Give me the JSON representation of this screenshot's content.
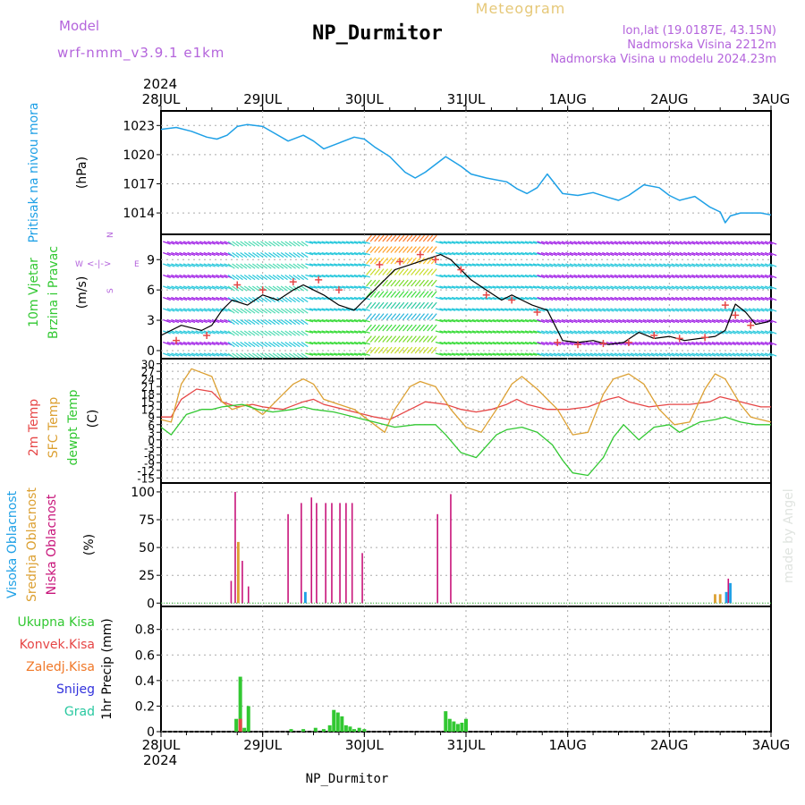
{
  "header": {
    "model_label": "Model",
    "model_value": "wrf-nmm_v3.9.1  e1km",
    "title": "NP_Durmitor",
    "subtitle": "Meteogram",
    "location": "lon,lat (19.0187E, 43.15N)",
    "elevation": "Nadmorska Visina 2212m",
    "model_elevation": "Nadmorska Visina u modelu 2024.23m",
    "footer": "NP_Durmitor",
    "credit": "made by Angel"
  },
  "colors": {
    "pressure": "#1ea0e6",
    "t2m": "#e64646",
    "sfc": "#dca032",
    "dewpt": "#32c832",
    "cloud_high": "#1ea0e6",
    "cloud_mid": "#dca032",
    "cloud_low": "#c8147a",
    "precip_total": "#32c832",
    "precip_conv": "#e64646",
    "precip_frz": "#f07828",
    "snow": "#3232dc",
    "hail": "#28c8a0",
    "wind_legend": "#b464dc"
  },
  "time_axis": {
    "year": "2024",
    "ticks": [
      "28JUL",
      "29JUL",
      "30JUL",
      "31JUL",
      "1AUG",
      "2AUG",
      "3AUG"
    ]
  },
  "chart_data": [
    {
      "type": "line",
      "panel": "pressure",
      "ylabel": [
        "Pritisak na nivou mora",
        "(hPa)"
      ],
      "yticks": [
        1014,
        1017,
        1020,
        1023
      ],
      "ylim": [
        1011.8,
        1024.5
      ],
      "x_days": [
        0,
        0.15,
        0.3,
        0.45,
        0.55,
        0.65,
        0.75,
        0.85,
        1.0,
        1.1,
        1.25,
        1.4,
        1.5,
        1.6,
        1.75,
        1.9,
        2.0,
        2.1,
        2.25,
        2.4,
        2.5,
        2.6,
        2.8,
        2.95,
        3.05,
        3.2,
        3.4,
        3.5,
        3.6,
        3.7,
        3.8,
        3.95,
        4.1,
        4.25,
        4.4,
        4.5,
        4.6,
        4.75,
        4.9,
        5.0,
        5.1,
        5.25,
        5.4,
        5.5,
        5.55,
        5.6,
        5.7,
        5.8,
        5.9,
        6.0
      ],
      "values": [
        1022.6,
        1022.8,
        1022.4,
        1021.8,
        1021.6,
        1022.0,
        1022.9,
        1023.1,
        1022.9,
        1022.3,
        1021.4,
        1022.0,
        1021.4,
        1020.6,
        1021.2,
        1021.8,
        1021.6,
        1020.8,
        1019.8,
        1018.2,
        1017.6,
        1018.2,
        1019.8,
        1018.8,
        1018.0,
        1017.6,
        1017.2,
        1016.5,
        1016.0,
        1016.6,
        1018.0,
        1016.0,
        1015.8,
        1016.1,
        1015.6,
        1015.3,
        1015.8,
        1016.9,
        1016.6,
        1015.8,
        1015.3,
        1015.7,
        1014.6,
        1014.1,
        1013.0,
        1013.7,
        1014.0,
        1014.0,
        1014.0,
        1013.8
      ],
      "grid": true
    },
    {
      "type": "line",
      "panel": "wind",
      "ylabel": [
        "10m Vjetar",
        "Brzina i Pravac",
        "(m/s)"
      ],
      "yticks": [
        0,
        3,
        6,
        9
      ],
      "ylim": [
        -0.8,
        11.5
      ],
      "direction_legend": [
        "N",
        "W",
        "E",
        "S"
      ],
      "x_days": [
        0,
        0.2,
        0.4,
        0.5,
        0.6,
        0.7,
        0.85,
        1.0,
        1.15,
        1.3,
        1.4,
        1.5,
        1.6,
        1.75,
        1.9,
        2.0,
        2.1,
        2.2,
        2.3,
        2.45,
        2.6,
        2.75,
        2.85,
        2.95,
        3.05,
        3.2,
        3.35,
        3.45,
        3.55,
        3.65,
        3.8,
        3.95,
        4.1,
        4.25,
        4.4,
        4.55,
        4.7,
        4.85,
        5.0,
        5.15,
        5.3,
        5.45,
        5.55,
        5.65,
        5.75,
        5.85,
        5.95,
        6.0
      ],
      "values": [
        1.5,
        2.5,
        2.0,
        2.5,
        4.0,
        5.0,
        4.5,
        5.5,
        5.0,
        6.0,
        6.5,
        6.0,
        5.5,
        4.5,
        4.0,
        5.0,
        6.0,
        7.0,
        8.0,
        8.5,
        9.0,
        9.5,
        9.0,
        8.0,
        7.0,
        6.0,
        5.0,
        5.5,
        5.0,
        4.5,
        4.0,
        1.0,
        0.8,
        1.0,
        0.6,
        0.8,
        1.8,
        1.2,
        1.4,
        1.0,
        1.2,
        1.4,
        2.0,
        4.6,
        3.8,
        2.6,
        2.8,
        3.0
      ],
      "gust_x_days": [
        0.15,
        0.45,
        0.75,
        1.0,
        1.3,
        1.55,
        1.75,
        2.15,
        2.35,
        2.55,
        2.7,
        2.95,
        3.2,
        3.45,
        3.7,
        3.9,
        4.1,
        4.35,
        4.6,
        4.85,
        5.1,
        5.35,
        5.55,
        5.65,
        5.8
      ],
      "gust_values": [
        1.0,
        1.5,
        6.5,
        6.0,
        6.8,
        7.0,
        6.0,
        8.5,
        8.8,
        9.5,
        9.0,
        8.0,
        5.5,
        5.0,
        3.8,
        0.8,
        0.6,
        0.7,
        0.8,
        1.5,
        1.2,
        1.3,
        4.5,
        3.5,
        2.5
      ],
      "grid": true
    },
    {
      "type": "line",
      "panel": "temperature",
      "ylabel": [
        "2m Temp",
        "SFC Temp",
        "dewpt Temp",
        "(C)"
      ],
      "yticks": [
        -15,
        -12,
        -9,
        -6,
        -3,
        0,
        3,
        6,
        9,
        12,
        15,
        18,
        21,
        24,
        27,
        30
      ],
      "ylim": [
        -17,
        32
      ],
      "series": [
        {
          "name": "2m Temp",
          "x_days": [
            0,
            0.1,
            0.2,
            0.35,
            0.5,
            0.6,
            0.75,
            0.9,
            1.0,
            1.2,
            1.4,
            1.5,
            1.6,
            1.8,
            2.0,
            2.1,
            2.25,
            2.4,
            2.5,
            2.6,
            2.8,
            2.95,
            3.1,
            3.25,
            3.4,
            3.5,
            3.6,
            3.8,
            4.0,
            4.2,
            4.4,
            4.5,
            4.6,
            4.8,
            5.0,
            5.2,
            5.4,
            5.5,
            5.6,
            5.8,
            5.9,
            6.0
          ],
          "values": [
            9,
            9,
            16,
            20,
            19,
            15,
            13,
            14,
            13,
            12,
            15,
            16,
            14,
            12,
            10,
            9,
            8,
            11,
            13,
            15,
            14,
            12,
            11,
            12,
            14,
            16,
            14,
            12,
            12,
            13,
            16,
            17,
            15,
            13,
            14,
            14,
            15,
            17,
            16,
            14,
            13,
            13
          ]
        },
        {
          "name": "SFC Temp",
          "x_days": [
            0,
            0.1,
            0.2,
            0.3,
            0.5,
            0.6,
            0.7,
            0.85,
            1.0,
            1.2,
            1.3,
            1.4,
            1.5,
            1.6,
            1.75,
            1.9,
            2.0,
            2.1,
            2.2,
            2.3,
            2.45,
            2.55,
            2.7,
            2.85,
            3.0,
            3.15,
            3.3,
            3.45,
            3.55,
            3.7,
            3.9,
            4.05,
            4.2,
            4.35,
            4.45,
            4.6,
            4.75,
            4.9,
            5.05,
            5.2,
            5.35,
            5.45,
            5.55,
            5.7,
            5.8,
            5.9,
            6.0
          ],
          "values": [
            8,
            7,
            22,
            28,
            25,
            15,
            12,
            14,
            10,
            18,
            22,
            24,
            22,
            16,
            14,
            12,
            9,
            6,
            3,
            12,
            21,
            23,
            21,
            12,
            5,
            3,
            12,
            22,
            25,
            20,
            12,
            2,
            3,
            18,
            24,
            26,
            22,
            12,
            6,
            7,
            20,
            26,
            24,
            14,
            9,
            8,
            7
          ]
        },
        {
          "name": "dewpt Temp",
          "x_days": [
            0,
            0.1,
            0.25,
            0.4,
            0.5,
            0.6,
            0.8,
            0.95,
            1.1,
            1.3,
            1.4,
            1.5,
            1.7,
            1.9,
            2.0,
            2.1,
            2.3,
            2.5,
            2.7,
            2.8,
            2.95,
            3.1,
            3.3,
            3.4,
            3.55,
            3.7,
            3.85,
            3.95,
            4.05,
            4.2,
            4.35,
            4.45,
            4.55,
            4.7,
            4.85,
            5.0,
            5.1,
            5.3,
            5.45,
            5.55,
            5.7,
            5.85,
            6.0
          ],
          "values": [
            5,
            2,
            10,
            12,
            12,
            13,
            14,
            12,
            11,
            12,
            13,
            12,
            11,
            9,
            8,
            7,
            5,
            6,
            6,
            2,
            -5,
            -7,
            2,
            4,
            5,
            3,
            -2,
            -8,
            -13,
            -14,
            -7,
            1,
            6,
            0,
            5,
            6,
            3,
            7,
            8,
            9,
            7,
            6,
            6
          ]
        }
      ],
      "grid": true
    },
    {
      "type": "bar",
      "panel": "clouds",
      "ylabel": [
        "Visoka Oblacnost",
        "Srednja Oblacnost",
        "Niska Oblacnost",
        "(%)"
      ],
      "yticks": [
        0,
        25,
        50,
        75,
        100
      ],
      "ylim": [
        -3,
        108
      ],
      "series": [
        {
          "name": "Niska Oblacnost",
          "x_days": [
            0.69,
            0.73,
            0.8,
            0.86,
            1.25,
            1.38,
            1.48,
            1.53,
            1.62,
            1.68,
            1.76,
            1.82,
            1.88,
            1.98,
            2.72,
            2.85,
            5.58
          ],
          "values": [
            20,
            100,
            38,
            15,
            80,
            90,
            95,
            90,
            90,
            90,
            90,
            90,
            90,
            45,
            80,
            98,
            22
          ]
        },
        {
          "name": "Srednja Oblacnost",
          "x_days": [
            0.76,
            5.45,
            5.5
          ],
          "values": [
            55,
            8,
            8
          ]
        },
        {
          "name": "Visoka Oblacnost",
          "x_days": [
            1.42,
            5.56,
            5.6
          ],
          "values": [
            10,
            10,
            18
          ]
        }
      ],
      "grid": true
    },
    {
      "type": "bar",
      "panel": "precipitation",
      "ylabel": [
        "Ukupna Kisa",
        "Konvek.Kisa",
        "Zaledj.Kisa",
        "Snijeg",
        "Grad",
        "1hr Precip (mm)"
      ],
      "yticks": [
        0,
        0.2,
        0.4,
        0.6,
        0.8
      ],
      "ylim": [
        0,
        0.98
      ],
      "series": [
        {
          "name": "Ukupna Kisa",
          "x_days": [
            0.74,
            0.78,
            0.82,
            0.86,
            1.28,
            1.4,
            1.52,
            1.6,
            1.66,
            1.7,
            1.74,
            1.78,
            1.82,
            1.86,
            1.9,
            1.95,
            2.0,
            2.8,
            2.84,
            2.88,
            2.92,
            2.96,
            3.0
          ],
          "values": [
            0.1,
            0.43,
            0.03,
            0.2,
            0.02,
            0.02,
            0.03,
            0.02,
            0.05,
            0.17,
            0.15,
            0.12,
            0.05,
            0.04,
            0.02,
            0.03,
            0.02,
            0.16,
            0.1,
            0.08,
            0.06,
            0.07,
            0.1
          ]
        },
        {
          "name": "Konvek.Kisa",
          "x_days": [
            0.78
          ],
          "values": [
            0.1
          ]
        }
      ],
      "grid": true
    }
  ]
}
